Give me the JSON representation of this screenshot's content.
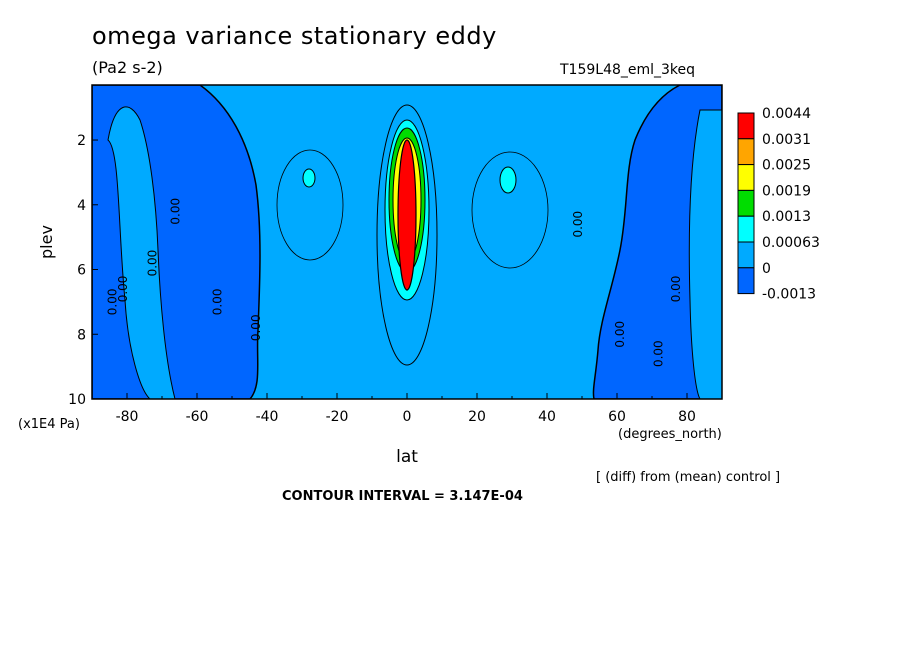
{
  "header": {
    "title": "omega variance stationary eddy",
    "units": "(Pa2 s-2)",
    "run": "T159L48_eml_3keq"
  },
  "footer": {
    "note": "[ (diff) from (mean) control ]",
    "contour_interval": "CONTOUR INTERVAL = 3.147E-04"
  },
  "chart_data": {
    "type": "heatmap",
    "title": "omega variance stationary eddy",
    "subtitle": "(Pa2 s-2)",
    "xlabel": "lat",
    "xunits": "(degrees_north)",
    "ylabel": "plev",
    "yunits": "(x1E4 Pa)",
    "xlim": [
      -90,
      90
    ],
    "ylim": [
      10,
      0.3
    ],
    "x_ticks": [
      -80,
      -60,
      -40,
      -20,
      0,
      20,
      40,
      60,
      80
    ],
    "x_tick_labels": [
      "-80",
      "-60",
      "-40",
      "-20",
      "0",
      "20",
      "40",
      "60",
      "80"
    ],
    "y_ticks": [
      2,
      4,
      6,
      8,
      10
    ],
    "y_tick_labels": [
      "2",
      "4",
      "6",
      "8",
      "10"
    ],
    "legend": {
      "position": "right",
      "levels": [
        "0.0044",
        "0.0031",
        "0.0025",
        "0.0019",
        "0.0013",
        "0.00063",
        "0",
        "-0.0013"
      ],
      "colors": [
        "#ff0000",
        "#ffa500",
        "#ffff00",
        "#00dd00",
        "#00ffff",
        "#00aaff",
        "#0066ff"
      ]
    },
    "contour_labels": [
      "0.00",
      "0.00",
      "0.00",
      "0.00",
      "0.00",
      "0.00",
      "0.00",
      "0.00",
      "0.00",
      "0.00"
    ],
    "background_color": "#00aaff",
    "features": [
      {
        "kind": "negative-band",
        "lat_range": [
          -90,
          -50
        ],
        "plev_range": [
          0.3,
          10
        ]
      },
      {
        "kind": "negative-band",
        "lat_range": [
          54,
          90
        ],
        "plev_range": [
          0.3,
          10
        ]
      },
      {
        "kind": "positive-core",
        "lat": 0,
        "plev_range": [
          1.2,
          8.5
        ],
        "peak": 0.0044
      },
      {
        "kind": "positive-spot",
        "lat": -28,
        "plev": 3
      },
      {
        "kind": "positive-spot",
        "lat": 30,
        "plev": 3
      }
    ]
  }
}
